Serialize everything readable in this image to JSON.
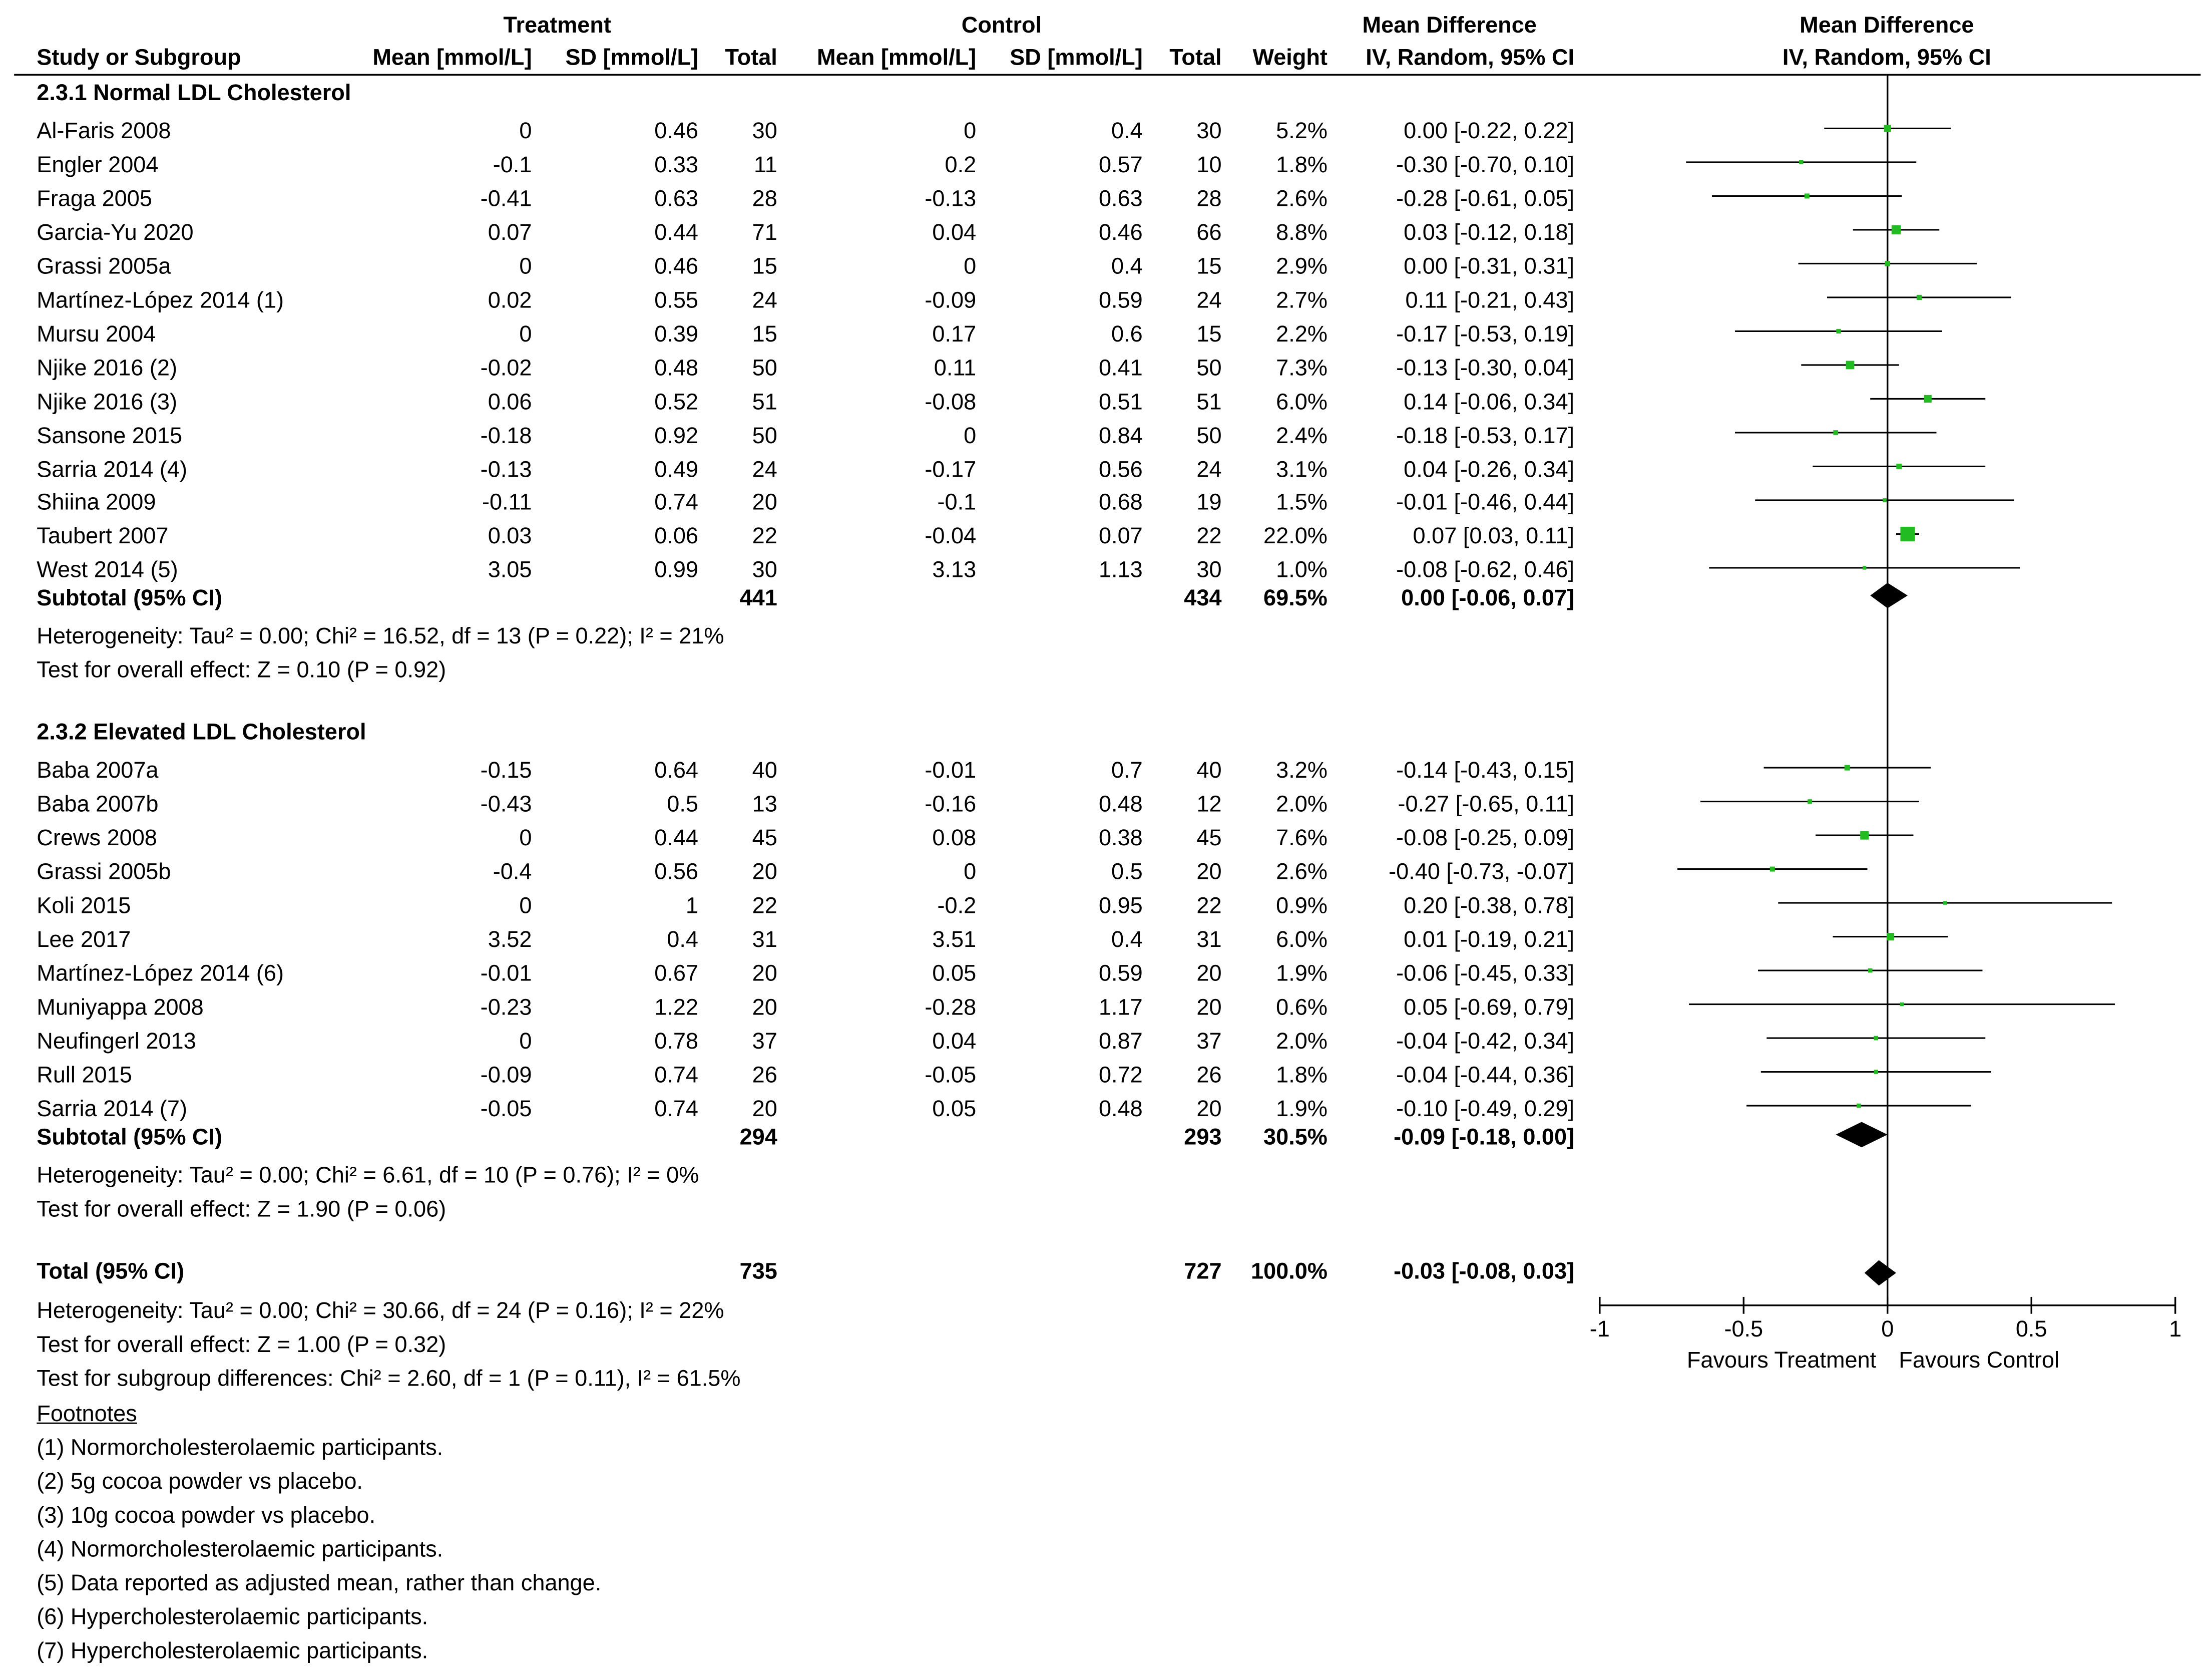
{
  "header": {
    "group_treatment": "Treatment",
    "group_control": "Control",
    "md_title": "Mean Difference",
    "plot_title": "Mean Difference",
    "col_study": "Study or Subgroup",
    "col_t_mean": "Mean [mmol/L]",
    "col_t_sd": "SD [mmol/L]",
    "col_t_total": "Total",
    "col_c_mean": "Mean [mmol/L]",
    "col_c_sd": "SD [mmol/L]",
    "col_c_total": "Total",
    "col_weight": "Weight",
    "col_ci": "IV, Random, 95% CI",
    "plot_sub": "IV, Random, 95% CI"
  },
  "subgroups": [
    {
      "title": "2.3.1 Normal LDL Cholesterol",
      "studies": [
        {
          "study": "Al-Faris 2008",
          "t_mean": "0",
          "t_sd": "0.46",
          "t_total": "30",
          "c_mean": "0",
          "c_sd": "0.4",
          "c_total": "30",
          "weight": "5.2%",
          "ci": "0.00 [-0.22, 0.22]",
          "md": 0.0,
          "lo": -0.22,
          "hi": 0.22,
          "w": 5.2
        },
        {
          "study": "Engler 2004",
          "t_mean": "-0.1",
          "t_sd": "0.33",
          "t_total": "11",
          "c_mean": "0.2",
          "c_sd": "0.57",
          "c_total": "10",
          "weight": "1.8%",
          "ci": "-0.30 [-0.70, 0.10]",
          "md": -0.3,
          "lo": -0.7,
          "hi": 0.1,
          "w": 1.8
        },
        {
          "study": "Fraga 2005",
          "t_mean": "-0.41",
          "t_sd": "0.63",
          "t_total": "28",
          "c_mean": "-0.13",
          "c_sd": "0.63",
          "c_total": "28",
          "weight": "2.6%",
          "ci": "-0.28 [-0.61, 0.05]",
          "md": -0.28,
          "lo": -0.61,
          "hi": 0.05,
          "w": 2.6
        },
        {
          "study": "Garcia-Yu 2020",
          "t_mean": "0.07",
          "t_sd": "0.44",
          "t_total": "71",
          "c_mean": "0.04",
          "c_sd": "0.46",
          "c_total": "66",
          "weight": "8.8%",
          "ci": "0.03 [-0.12, 0.18]",
          "md": 0.03,
          "lo": -0.12,
          "hi": 0.18,
          "w": 8.8
        },
        {
          "study": "Grassi 2005a",
          "t_mean": "0",
          "t_sd": "0.46",
          "t_total": "15",
          "c_mean": "0",
          "c_sd": "0.4",
          "c_total": "15",
          "weight": "2.9%",
          "ci": "0.00 [-0.31, 0.31]",
          "md": 0.0,
          "lo": -0.31,
          "hi": 0.31,
          "w": 2.9
        },
        {
          "study": "Martínez-López 2014 (1)",
          "t_mean": "0.02",
          "t_sd": "0.55",
          "t_total": "24",
          "c_mean": "-0.09",
          "c_sd": "0.59",
          "c_total": "24",
          "weight": "2.7%",
          "ci": "0.11 [-0.21, 0.43]",
          "md": 0.11,
          "lo": -0.21,
          "hi": 0.43,
          "w": 2.7
        },
        {
          "study": "Mursu 2004",
          "t_mean": "0",
          "t_sd": "0.39",
          "t_total": "15",
          "c_mean": "0.17",
          "c_sd": "0.6",
          "c_total": "15",
          "weight": "2.2%",
          "ci": "-0.17 [-0.53, 0.19]",
          "md": -0.17,
          "lo": -0.53,
          "hi": 0.19,
          "w": 2.2
        },
        {
          "study": "Njike 2016 (2)",
          "t_mean": "-0.02",
          "t_sd": "0.48",
          "t_total": "50",
          "c_mean": "0.11",
          "c_sd": "0.41",
          "c_total": "50",
          "weight": "7.3%",
          "ci": "-0.13 [-0.30, 0.04]",
          "md": -0.13,
          "lo": -0.3,
          "hi": 0.04,
          "w": 7.3
        },
        {
          "study": "Njike 2016 (3)",
          "t_mean": "0.06",
          "t_sd": "0.52",
          "t_total": "51",
          "c_mean": "-0.08",
          "c_sd": "0.51",
          "c_total": "51",
          "weight": "6.0%",
          "ci": "0.14 [-0.06, 0.34]",
          "md": 0.14,
          "lo": -0.06,
          "hi": 0.34,
          "w": 6.0
        },
        {
          "study": "Sansone 2015",
          "t_mean": "-0.18",
          "t_sd": "0.92",
          "t_total": "50",
          "c_mean": "0",
          "c_sd": "0.84",
          "c_total": "50",
          "weight": "2.4%",
          "ci": "-0.18 [-0.53, 0.17]",
          "md": -0.18,
          "lo": -0.53,
          "hi": 0.17,
          "w": 2.4
        },
        {
          "study": "Sarria 2014 (4)",
          "t_mean": "-0.13",
          "t_sd": "0.49",
          "t_total": "24",
          "c_mean": "-0.17",
          "c_sd": "0.56",
          "c_total": "24",
          "weight": "3.1%",
          "ci": "0.04 [-0.26, 0.34]",
          "md": 0.04,
          "lo": -0.26,
          "hi": 0.34,
          "w": 3.1
        },
        {
          "study": "Shiina 2009",
          "t_mean": "-0.11",
          "t_sd": "0.74",
          "t_total": "20",
          "c_mean": "-0.1",
          "c_sd": "0.68",
          "c_total": "19",
          "weight": "1.5%",
          "ci": "-0.01 [-0.46, 0.44]",
          "md": -0.01,
          "lo": -0.46,
          "hi": 0.44,
          "w": 1.5
        },
        {
          "study": "Taubert 2007",
          "t_mean": "0.03",
          "t_sd": "0.06",
          "t_total": "22",
          "c_mean": "-0.04",
          "c_sd": "0.07",
          "c_total": "22",
          "weight": "22.0%",
          "ci": "0.07 [0.03, 0.11]",
          "md": 0.07,
          "lo": 0.03,
          "hi": 0.11,
          "w": 22.0
        },
        {
          "study": "West 2014 (5)",
          "t_mean": "3.05",
          "t_sd": "0.99",
          "t_total": "30",
          "c_mean": "3.13",
          "c_sd": "1.13",
          "c_total": "30",
          "weight": "1.0%",
          "ci": "-0.08 [-0.62, 0.46]",
          "md": -0.08,
          "lo": -0.62,
          "hi": 0.46,
          "w": 1.0
        }
      ],
      "subtotal": {
        "label": "Subtotal (95% CI)",
        "t_total": "441",
        "c_total": "434",
        "weight": "69.5%",
        "ci": "0.00 [-0.06, 0.07]",
        "md": 0.0,
        "lo": -0.06,
        "hi": 0.07
      },
      "heterogeneity": "Heterogeneity: Tau² = 0.00; Chi² = 16.52, df = 13 (P = 0.22); I² = 21%",
      "overall_effect": "Test for overall effect: Z = 0.10 (P = 0.92)"
    },
    {
      "title": "2.3.2 Elevated LDL Cholesterol",
      "studies": [
        {
          "study": "Baba 2007a",
          "t_mean": "-0.15",
          "t_sd": "0.64",
          "t_total": "40",
          "c_mean": "-0.01",
          "c_sd": "0.7",
          "c_total": "40",
          "weight": "3.2%",
          "ci": "-0.14 [-0.43, 0.15]",
          "md": -0.14,
          "lo": -0.43,
          "hi": 0.15,
          "w": 3.2
        },
        {
          "study": "Baba 2007b",
          "t_mean": "-0.43",
          "t_sd": "0.5",
          "t_total": "13",
          "c_mean": "-0.16",
          "c_sd": "0.48",
          "c_total": "12",
          "weight": "2.0%",
          "ci": "-0.27 [-0.65, 0.11]",
          "md": -0.27,
          "lo": -0.65,
          "hi": 0.11,
          "w": 2.0
        },
        {
          "study": "Crews 2008",
          "t_mean": "0",
          "t_sd": "0.44",
          "t_total": "45",
          "c_mean": "0.08",
          "c_sd": "0.38",
          "c_total": "45",
          "weight": "7.6%",
          "ci": "-0.08 [-0.25, 0.09]",
          "md": -0.08,
          "lo": -0.25,
          "hi": 0.09,
          "w": 7.6
        },
        {
          "study": "Grassi 2005b",
          "t_mean": "-0.4",
          "t_sd": "0.56",
          "t_total": "20",
          "c_mean": "0",
          "c_sd": "0.5",
          "c_total": "20",
          "weight": "2.6%",
          "ci": "-0.40 [-0.73, -0.07]",
          "md": -0.4,
          "lo": -0.73,
          "hi": -0.07,
          "w": 2.6
        },
        {
          "study": "Koli 2015",
          "t_mean": "0",
          "t_sd": "1",
          "t_total": "22",
          "c_mean": "-0.2",
          "c_sd": "0.95",
          "c_total": "22",
          "weight": "0.9%",
          "ci": "0.20 [-0.38, 0.78]",
          "md": 0.2,
          "lo": -0.38,
          "hi": 0.78,
          "w": 0.9
        },
        {
          "study": "Lee 2017",
          "t_mean": "3.52",
          "t_sd": "0.4",
          "t_total": "31",
          "c_mean": "3.51",
          "c_sd": "0.4",
          "c_total": "31",
          "weight": "6.0%",
          "ci": "0.01 [-0.19, 0.21]",
          "md": 0.01,
          "lo": -0.19,
          "hi": 0.21,
          "w": 6.0
        },
        {
          "study": "Martínez-López 2014 (6)",
          "t_mean": "-0.01",
          "t_sd": "0.67",
          "t_total": "20",
          "c_mean": "0.05",
          "c_sd": "0.59",
          "c_total": "20",
          "weight": "1.9%",
          "ci": "-0.06 [-0.45, 0.33]",
          "md": -0.06,
          "lo": -0.45,
          "hi": 0.33,
          "w": 1.9
        },
        {
          "study": "Muniyappa 2008",
          "t_mean": "-0.23",
          "t_sd": "1.22",
          "t_total": "20",
          "c_mean": "-0.28",
          "c_sd": "1.17",
          "c_total": "20",
          "weight": "0.6%",
          "ci": "0.05 [-0.69, 0.79]",
          "md": 0.05,
          "lo": -0.69,
          "hi": 0.79,
          "w": 0.6
        },
        {
          "study": "Neufingerl 2013",
          "t_mean": "0",
          "t_sd": "0.78",
          "t_total": "37",
          "c_mean": "0.04",
          "c_sd": "0.87",
          "c_total": "37",
          "weight": "2.0%",
          "ci": "-0.04 [-0.42, 0.34]",
          "md": -0.04,
          "lo": -0.42,
          "hi": 0.34,
          "w": 2.0
        },
        {
          "study": "Rull 2015",
          "t_mean": "-0.09",
          "t_sd": "0.74",
          "t_total": "26",
          "c_mean": "-0.05",
          "c_sd": "0.72",
          "c_total": "26",
          "weight": "1.8%",
          "ci": "-0.04 [-0.44, 0.36]",
          "md": -0.04,
          "lo": -0.44,
          "hi": 0.36,
          "w": 1.8
        },
        {
          "study": "Sarria 2014 (7)",
          "t_mean": "-0.05",
          "t_sd": "0.74",
          "t_total": "20",
          "c_mean": "0.05",
          "c_sd": "0.48",
          "c_total": "20",
          "weight": "1.9%",
          "ci": "-0.10 [-0.49, 0.29]",
          "md": -0.1,
          "lo": -0.49,
          "hi": 0.29,
          "w": 1.9
        }
      ],
      "subtotal": {
        "label": "Subtotal (95% CI)",
        "t_total": "294",
        "c_total": "293",
        "weight": "30.5%",
        "ci": "-0.09 [-0.18, 0.00]",
        "md": -0.09,
        "lo": -0.18,
        "hi": 0.0
      },
      "heterogeneity": "Heterogeneity: Tau² = 0.00; Chi² = 6.61, df = 10 (P = 0.76); I² = 0%",
      "overall_effect": "Test for overall effect: Z = 1.90 (P = 0.06)"
    }
  ],
  "total": {
    "label": "Total (95% CI)",
    "t_total": "735",
    "c_total": "727",
    "weight": "100.0%",
    "ci": "-0.03 [-0.08, 0.03]",
    "md": -0.03,
    "lo": -0.08,
    "hi": 0.03,
    "heterogeneity": "Heterogeneity: Tau² = 0.00; Chi² = 30.66, df = 24 (P = 0.16); I² = 22%",
    "overall_effect": "Test for overall effect: Z = 1.00 (P = 0.32)",
    "subgroup_diff": "Test for subgroup differences: Chi² = 2.60, df = 1 (P = 0.11), I² = 61.5%"
  },
  "footnotes": {
    "title": "Footnotes",
    "items": [
      "(1) Normorcholesterolaemic participants.",
      "(2) 5g cocoa powder vs placebo.",
      "(3) 10g cocoa powder vs placebo.",
      "(4) Normorcholesterolaemic participants.",
      "(5) Data reported as adjusted mean, rather than change.",
      "(6) Hypercholesterolaemic participants.",
      "(7) Hypercholesterolaemic participants."
    ]
  },
  "axis": {
    "ticks": [
      -1,
      -0.5,
      0,
      0.5,
      1
    ],
    "tick_labels": [
      "-1",
      "-0.5",
      "0",
      "0.5",
      "1"
    ],
    "favours_left": "Favours Treatment",
    "favours_right": "Favours Control"
  },
  "colors": {
    "square": "#22bb22",
    "diamond": "#000000",
    "line": "#000000"
  },
  "chart_data": {
    "type": "forest",
    "title": "Mean Difference IV, Random, 95% CI",
    "xlabel_left": "Favours Treatment",
    "xlabel_right": "Favours Control",
    "xlim": [
      -1,
      1
    ],
    "series": [
      {
        "name": "2.3.1 Normal LDL Cholesterol",
        "subtotal_md": 0.0,
        "subtotal_ci": [
          -0.06,
          0.07
        ]
      },
      {
        "name": "2.3.2 Elevated LDL Cholesterol",
        "subtotal_md": -0.09,
        "subtotal_ci": [
          -0.18,
          0.0
        ]
      }
    ],
    "overall_md": -0.03,
    "overall_ci": [
      -0.08,
      0.03
    ]
  }
}
